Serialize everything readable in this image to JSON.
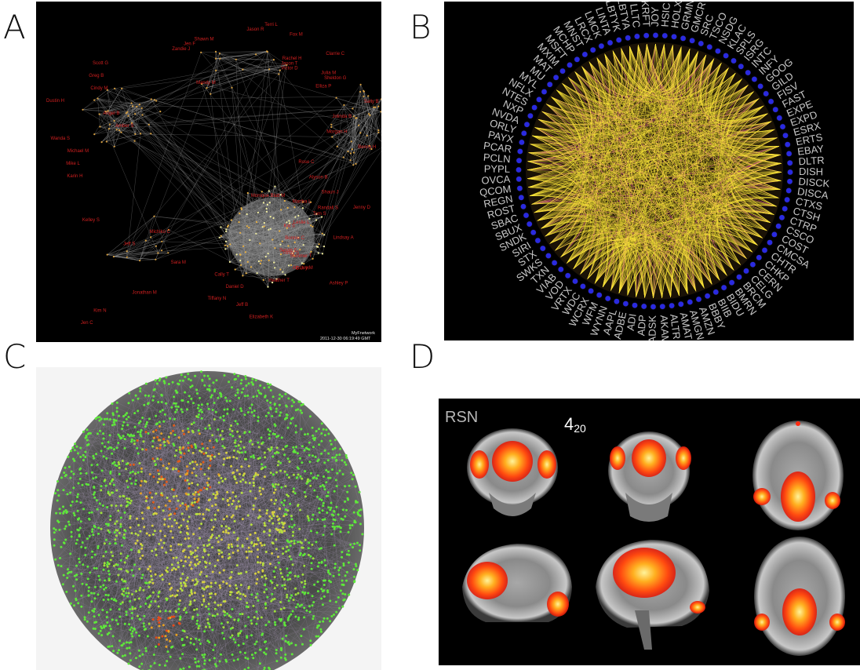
{
  "panel_letters": [
    "A",
    "B",
    "C",
    "D"
  ],
  "panel_a": {
    "labels_left": [
      "Scott G",
      "Greg B",
      "Cindy M",
      "Dustin H",
      "Angel B",
      "Amber S",
      "Wanda S",
      "Michael M",
      "Mike L",
      "Karin H"
    ],
    "labels_top": [
      "Terri L",
      "Jason R",
      "Fox M",
      "Shawn M",
      "Jen F",
      "Zandie J",
      "Clarrie C",
      "Rachel H",
      "Jason T",
      "Victor D",
      "Julia M",
      "Sheldon G",
      "Mandy M"
    ],
    "labels_right": [
      "Elliza P",
      "Sally B",
      "Jolinda B",
      "Morgan H",
      "Benny H",
      "Rose C",
      "Alyson B",
      "Shaun J",
      "Jenny D",
      "Leslie L",
      "Lindsay A",
      "Trinity S",
      "Ainsley M",
      "Ashley P"
    ],
    "labels_bottom": [
      "Monique Blatt M",
      "Martha L",
      "Randall S",
      "Tom S",
      "Kelley S",
      "Kai S",
      "Michiko C",
      "Bonnie C",
      "Jeff S",
      "Susan E",
      "Summer T",
      "Sara M",
      "D.J. H",
      "Cally T",
      "Heather T",
      "Daniel D",
      "Jonathan M",
      "Tiffany N",
      "Jeff B",
      "Kim N",
      "Elizabeth K",
      "Jen C"
    ],
    "watermark_line1": "MyFnetwork",
    "watermark_line2": "2011-12-30 06:19:49 GMT"
  },
  "panel_b": {
    "tickers": [
      "SRC",
      "TSCO",
      "NSDG",
      "KLAC",
      "SPLS",
      "ISRG",
      "INTC",
      "INFY",
      "GOOG",
      "GILD",
      "FISV",
      "FAST",
      "EXPE",
      "EXPD",
      "ESRX",
      "ERTS",
      "EBAY",
      "DLTR",
      "DISH",
      "DISCK",
      "DISCA",
      "CTXS",
      "CTSH",
      "CTRP",
      "CSCO",
      "COST",
      "CMCSA",
      "CHTR",
      "CHKP",
      "CERN",
      "CELG",
      "BRCM",
      "BMRN",
      "BIDU",
      "BIIB",
      "BBBY",
      "AMZN",
      "AMGN",
      "AMAT",
      "ALTR",
      "AKAM",
      "ADSK",
      "ADP",
      "ADI",
      "ADBE",
      "AAPL",
      "WYNN",
      "WFM",
      "WCRX",
      "WDC",
      "VRTX",
      "VOD",
      "VIAB",
      "TXN",
      "SWKS",
      "STX",
      "SIRI",
      "SNDK",
      "SBUX",
      "SBAC",
      "ROST",
      "REGN",
      "QCOM",
      "OVCA",
      "PYPL",
      "PCLN",
      "PCAR",
      "PAYX",
      "ORLY",
      "NVDA",
      "NXP",
      "NTES",
      "NFLX",
      "MYL",
      "MU",
      "MAT",
      "MXIM",
      "MSFT",
      "MCHP",
      "MNST",
      "LRCX",
      "LMCK",
      "LINTA",
      "LBTYK",
      "LBTYA",
      "LLTC",
      "KRFT",
      "JOY",
      "HSIC",
      "HOLX",
      "GRMN",
      "GMCR"
    ]
  },
  "panel_d": {
    "title": "RSN",
    "component_main": "4",
    "component_sub": "20"
  }
}
